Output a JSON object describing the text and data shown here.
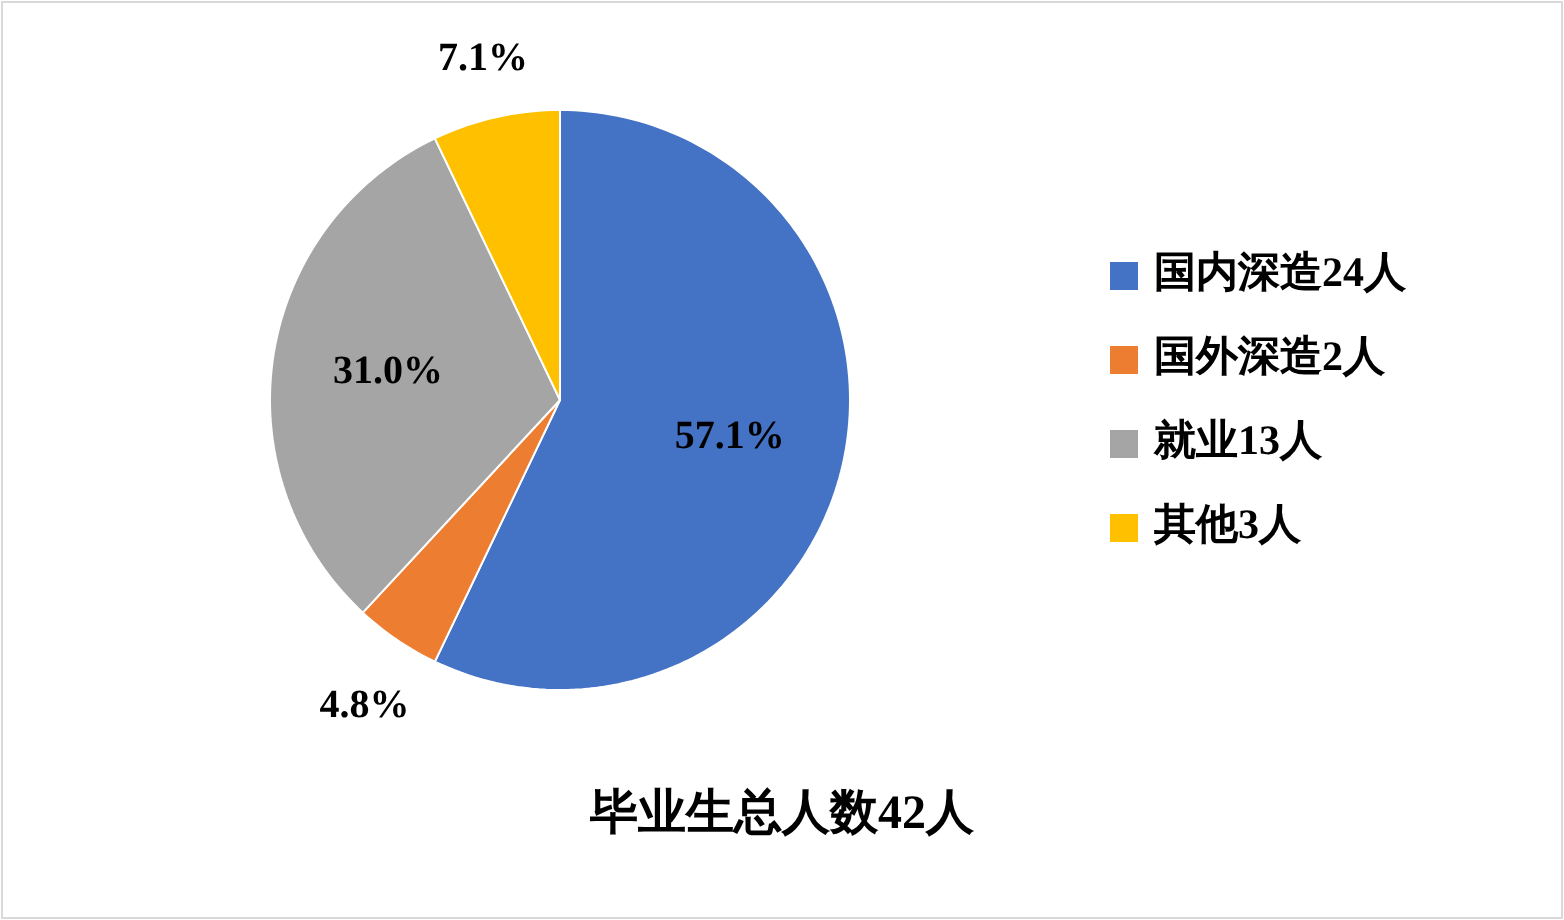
{
  "chart_data": {
    "type": "pie",
    "title": "毕业生总人数42人",
    "categories": [
      "国内深造24人",
      "国外深造2人",
      "就业13人",
      "其他3人"
    ],
    "values": [
      57.1,
      4.8,
      31.0,
      7.1
    ],
    "colors": [
      "#4472c4",
      "#ed7d31",
      "#a5a5a5",
      "#ffc000"
    ],
    "value_labels": [
      "57.1%",
      "4.8%",
      "31.0%",
      "7.1%"
    ],
    "legend": "right"
  }
}
